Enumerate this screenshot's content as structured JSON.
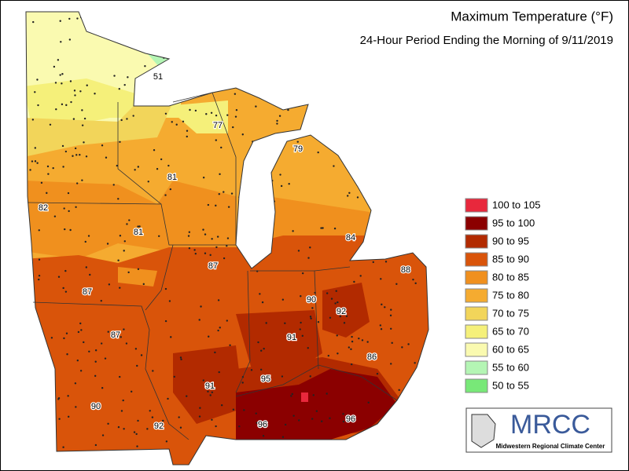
{
  "header": {
    "title": "Maximum Temperature (°F)",
    "subtitle": "24-Hour Period Ending the Morning of 9/11/2019"
  },
  "legend": [
    {
      "label": "100 to 105",
      "color": "#e8283c"
    },
    {
      "label": "95 to 100",
      "color": "#8b0000"
    },
    {
      "label": "90 to 95",
      "color": "#b22a00"
    },
    {
      "label": "85 to 90",
      "color": "#d9540a"
    },
    {
      "label": "80 to 85",
      "color": "#f0901e"
    },
    {
      "label": "75 to 80",
      "color": "#f5ab30"
    },
    {
      "label": "70 to 75",
      "color": "#f2d55a"
    },
    {
      "label": "65 to 70",
      "color": "#f5f07a"
    },
    {
      "label": "60 to 65",
      "color": "#fafab0"
    },
    {
      "label": "55 to 60",
      "color": "#b4f5b4"
    },
    {
      "label": "50 to 55",
      "color": "#78e878"
    }
  ],
  "map_labels": [
    51,
    77,
    79,
    81,
    82,
    81,
    84,
    87,
    88,
    87,
    90,
    92,
    87,
    91,
    86,
    91,
    95,
    90,
    92,
    96,
    96
  ],
  "logo": {
    "name": "MRCC",
    "org": "Midwestern Regional Climate Center"
  }
}
